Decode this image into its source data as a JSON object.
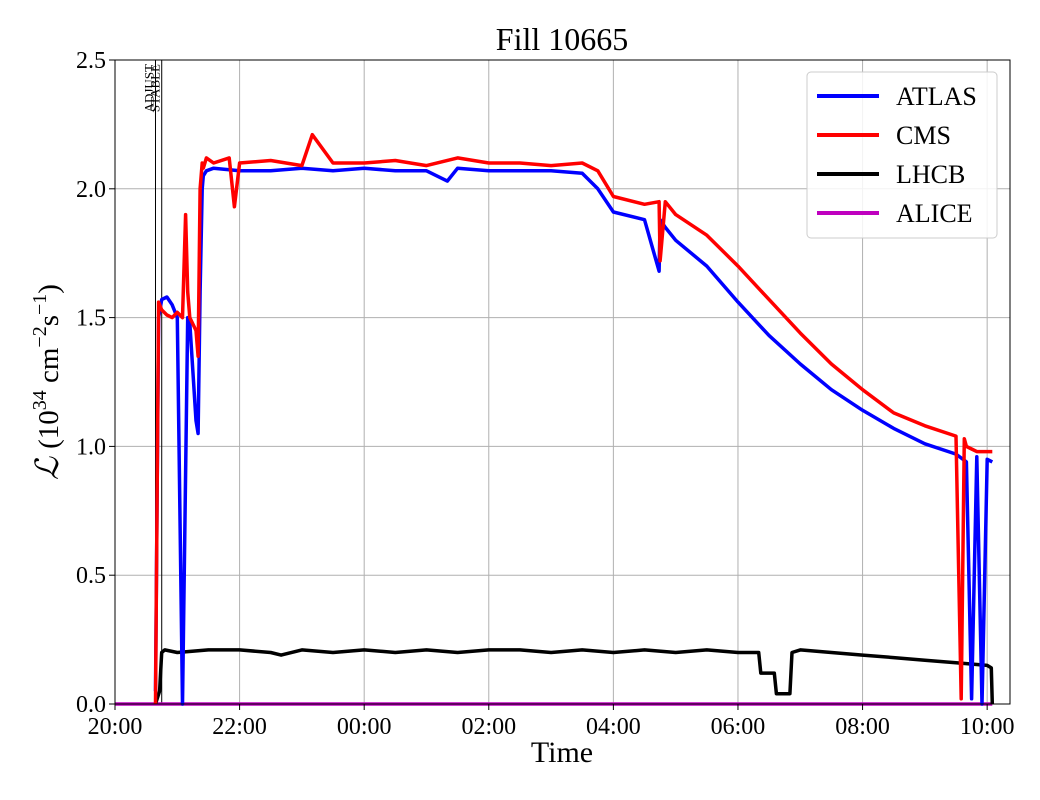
{
  "chart_data": {
    "type": "line",
    "title": "Fill 10665",
    "xlabel": "Time",
    "ylabel": "ℒ (10³⁴ cm⁻²s⁻¹)",
    "ylabel_parts": {
      "symbol": "ℒ",
      "base": "(10",
      "exp1": "34",
      "unit": " cm",
      "exp2": "−2",
      "unit2": "s",
      "exp3": "−1",
      "close": ")"
    },
    "xlim": [
      "2024-05-18T20:00",
      "2024-05-19T10:22"
    ],
    "ylim": [
      0,
      2.5
    ],
    "x_ticks": [
      "20:00",
      "22:00",
      "00:00",
      "02:00",
      "04:00",
      "06:00",
      "08:00",
      "10:00"
    ],
    "y_ticks": [
      "0.0",
      "0.5",
      "1.0",
      "1.5",
      "2.0",
      "2.5"
    ],
    "grid": true,
    "legend_position": "top-right",
    "annotations": [
      "ADJUST",
      "STABLE"
    ],
    "markers": [
      {
        "label": "ADJUST",
        "time": "20:39"
      },
      {
        "label": "STABLE",
        "time": "20:45"
      }
    ],
    "series": [
      {
        "name": "ATLAS",
        "color": "#0000ff",
        "x": [
          "20:39",
          "20:42",
          "20:45",
          "20:50",
          "20:55",
          "21:00",
          "21:05",
          "21:10",
          "21:12",
          "21:18",
          "21:20",
          "21:22",
          "21:24",
          "21:25",
          "21:28",
          "21:35",
          "22:00",
          "22:30",
          "23:00",
          "23:30",
          "00:00",
          "00:30",
          "01:00",
          "01:20",
          "01:30",
          "02:00",
          "02:30",
          "03:00",
          "03:30",
          "03:45",
          "04:00",
          "04:30",
          "04:44",
          "04:45",
          "04:50",
          "05:00",
          "05:30",
          "06:00",
          "06:30",
          "07:00",
          "07:30",
          "08:00",
          "08:30",
          "09:00",
          "09:30",
          "09:40",
          "09:45",
          "09:50",
          "09:55",
          "10:00",
          "10:05"
        ],
        "y": [
          0.05,
          1.5,
          1.57,
          1.58,
          1.55,
          1.5,
          0.0,
          1.5,
          1.48,
          1.1,
          1.05,
          1.6,
          2.0,
          2.05,
          2.07,
          2.08,
          2.07,
          2.07,
          2.08,
          2.07,
          2.08,
          2.07,
          2.07,
          2.03,
          2.08,
          2.07,
          2.07,
          2.07,
          2.06,
          2.0,
          1.91,
          1.88,
          1.68,
          1.88,
          1.85,
          1.8,
          1.7,
          1.56,
          1.43,
          1.32,
          1.22,
          1.14,
          1.07,
          1.01,
          0.97,
          0.94,
          0.02,
          0.96,
          0.0,
          0.95,
          0.94
        ]
      },
      {
        "name": "CMS",
        "color": "#ff0000",
        "x": [
          "20:39",
          "20:42",
          "20:45",
          "20:50",
          "20:55",
          "21:00",
          "21:05",
          "21:08",
          "21:10",
          "21:12",
          "21:18",
          "21:20",
          "21:22",
          "21:24",
          "21:25",
          "21:28",
          "21:35",
          "21:50",
          "21:55",
          "22:00",
          "22:30",
          "23:00",
          "23:10",
          "23:30",
          "00:00",
          "00:30",
          "01:00",
          "01:30",
          "02:00",
          "02:30",
          "03:00",
          "03:30",
          "03:45",
          "04:00",
          "04:30",
          "04:44",
          "04:45",
          "04:50",
          "05:00",
          "05:30",
          "06:00",
          "06:30",
          "07:00",
          "07:30",
          "08:00",
          "08:30",
          "09:00",
          "09:30",
          "09:35",
          "09:38",
          "09:40",
          "09:45",
          "09:50",
          "10:00",
          "10:05"
        ],
        "y": [
          0.0,
          1.56,
          1.53,
          1.51,
          1.5,
          1.52,
          1.5,
          1.9,
          1.6,
          1.5,
          1.45,
          1.35,
          2.0,
          2.1,
          2.08,
          2.12,
          2.1,
          2.12,
          1.93,
          2.1,
          2.11,
          2.09,
          2.21,
          2.1,
          2.1,
          2.11,
          2.09,
          2.12,
          2.1,
          2.1,
          2.09,
          2.1,
          2.07,
          1.97,
          1.94,
          1.95,
          1.72,
          1.95,
          1.9,
          1.82,
          1.7,
          1.57,
          1.44,
          1.32,
          1.22,
          1.13,
          1.08,
          1.04,
          0.02,
          1.03,
          1.0,
          0.99,
          0.98,
          0.98,
          0.98
        ]
      },
      {
        "name": "LHCB",
        "color": "#000000",
        "x": [
          "20:39",
          "20:43",
          "20:45",
          "20:48",
          "21:00",
          "21:30",
          "22:00",
          "22:30",
          "22:40",
          "23:00",
          "23:30",
          "00:00",
          "00:30",
          "01:00",
          "01:30",
          "02:00",
          "02:30",
          "03:00",
          "03:30",
          "04:00",
          "04:30",
          "05:00",
          "05:30",
          "06:00",
          "06:20",
          "06:22",
          "06:35",
          "06:37",
          "06:40",
          "06:50",
          "06:52",
          "07:00",
          "07:30",
          "08:00",
          "08:30",
          "09:00",
          "09:30",
          "10:00",
          "10:04",
          "10:05"
        ],
        "y": [
          0.0,
          0.05,
          0.2,
          0.21,
          0.2,
          0.21,
          0.21,
          0.2,
          0.19,
          0.21,
          0.2,
          0.21,
          0.2,
          0.21,
          0.2,
          0.21,
          0.21,
          0.2,
          0.21,
          0.2,
          0.21,
          0.2,
          0.21,
          0.2,
          0.2,
          0.12,
          0.12,
          0.04,
          0.04,
          0.04,
          0.2,
          0.21,
          0.2,
          0.19,
          0.18,
          0.17,
          0.16,
          0.15,
          0.14,
          0.0
        ]
      },
      {
        "name": "ALICE",
        "color": "#bf00bf",
        "x": [
          "20:00",
          "10:05"
        ],
        "y": [
          0.0,
          0.0
        ]
      }
    ]
  }
}
